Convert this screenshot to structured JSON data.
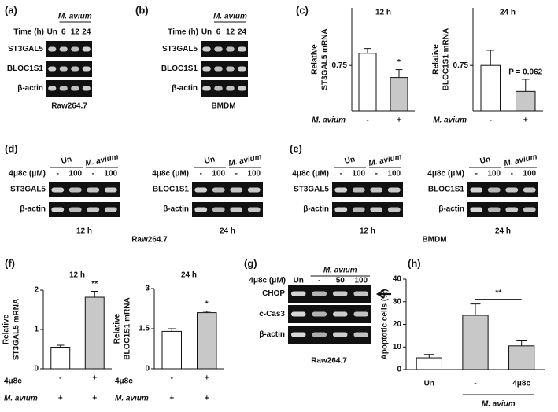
{
  "panel_labels": [
    "(a)",
    "(b)",
    "(c)",
    "(d)",
    "(e)",
    "(f)",
    "(g)",
    "(h)"
  ],
  "gels": {
    "a": {
      "header": "M. avium",
      "lane_title": "Time (h)",
      "lanes": [
        "Un",
        "6",
        "12",
        "24"
      ],
      "rows": [
        "ST3GAL5",
        "BLOC1S1",
        "β-actin"
      ],
      "caption": "Raw264.7"
    },
    "b": {
      "header": "M. avium",
      "lane_title": "Time (h)",
      "lanes": [
        "Un",
        "6",
        "12",
        "24"
      ],
      "rows": [
        "ST3GAL5",
        "BLOC1S1",
        "β-actin"
      ],
      "caption": "BMDM"
    },
    "d": {
      "treatment": "4μ8c (μM)",
      "groups": [
        "Un",
        "M. avium"
      ],
      "lanes": [
        "-",
        "100",
        "-",
        "100"
      ],
      "blots": [
        {
          "rows": [
            "ST3GAL5",
            "β-actin"
          ],
          "time": "12 h"
        },
        {
          "rows": [
            "BLOC1S1",
            "β-actin"
          ],
          "time": "24 h"
        }
      ],
      "caption": "Raw264.7"
    },
    "e": {
      "treatment": "4μ8c (μM)",
      "groups": [
        "Un",
        "M. avium"
      ],
      "lanes": [
        "-",
        "100",
        "-",
        "100"
      ],
      "blots": [
        {
          "rows": [
            "ST3GAL5",
            "β-actin"
          ],
          "time": "12 h"
        },
        {
          "rows": [
            "BLOC1S1",
            "β-actin"
          ],
          "time": "24 h"
        }
      ],
      "caption": "BMDM"
    },
    "g": {
      "header": "M. avium",
      "lane_title": "4μ8c (μM)",
      "lanes": [
        "Un",
        "-",
        "50",
        "100"
      ],
      "rows": [
        "CHOP",
        "c-Cas3",
        "β-actin"
      ],
      "caption": "Raw264.7"
    }
  },
  "chart_data": [
    {
      "type": "bar",
      "title": "12 h",
      "ylabel": [
        "Relative",
        "ST3GAL5 mRNA"
      ],
      "categories": [
        "-",
        "+"
      ],
      "xlabel": "M. avium",
      "values": [
        0.95,
        0.55
      ],
      "errors": [
        0.08,
        0.13
      ],
      "colors": [
        "#ffffff",
        "#c8c8c8"
      ],
      "ylim": [
        0,
        1.7
      ],
      "yticks": [
        0.75
      ],
      "annotations": [
        {
          "text": "*",
          "over": "+"
        }
      ]
    },
    {
      "type": "bar",
      "title": "24 h",
      "ylabel": [
        "Relative",
        "BLOC1S1 mRNA"
      ],
      "categories": [
        "-",
        "+"
      ],
      "xlabel": "M. avium",
      "values": [
        0.75,
        0.32
      ],
      "errors": [
        0.25,
        0.2
      ],
      "colors": [
        "#ffffff",
        "#c8c8c8"
      ],
      "ylim": [
        0,
        1.7
      ],
      "yticks": [
        0.75
      ],
      "annotations": [
        {
          "text": "P = 0.062",
          "over": "+"
        }
      ]
    },
    {
      "type": "bar",
      "title": "12 h",
      "ylabel": [
        "Relative",
        "ST3GAL5 mRNA"
      ],
      "categories": [
        "-",
        "+"
      ],
      "xlabel": "4μ8c",
      "second_row": {
        "label": "M. avium",
        "values": [
          "+",
          "+"
        ]
      },
      "values": [
        0.55,
        1.82
      ],
      "errors": [
        0.05,
        0.15
      ],
      "colors": [
        "#ffffff",
        "#c8c8c8"
      ],
      "ylim": [
        0,
        2
      ],
      "yticks": [
        0,
        1,
        2
      ],
      "annotations": [
        {
          "text": "**",
          "over": "+"
        }
      ]
    },
    {
      "type": "bar",
      "title": "24 h",
      "ylabel": [
        "Relative",
        "BLOC1S1 mRNA"
      ],
      "categories": [
        "-",
        "+"
      ],
      "xlabel": "4μ8c",
      "second_row": {
        "label": "M. avium",
        "values": [
          "+",
          "+"
        ]
      },
      "values": [
        1.4,
        2.1
      ],
      "errors": [
        0.1,
        0.05
      ],
      "colors": [
        "#ffffff",
        "#c8c8c8"
      ],
      "ylim": [
        0,
        3
      ],
      "yticks": [
        0,
        1.5,
        3
      ],
      "annotations": [
        {
          "text": "*",
          "over": "+"
        }
      ]
    },
    {
      "type": "bar",
      "ylabel": [
        "Apoptotic cells (%)"
      ],
      "categories": [
        "Un",
        "-",
        "4μ8c"
      ],
      "group_label": "M. avium",
      "values": [
        5.2,
        24,
        10.5
      ],
      "errors": [
        1.5,
        5,
        2.2
      ],
      "colors": [
        "#ffffff",
        "#c8c8c8",
        "#c8c8c8"
      ],
      "ylim": [
        0,
        40
      ],
      "yticks": [
        0,
        10,
        20,
        30,
        40
      ],
      "annotations": [
        {
          "text": "**",
          "between": [
            "-",
            "4μ8c"
          ]
        }
      ]
    }
  ]
}
